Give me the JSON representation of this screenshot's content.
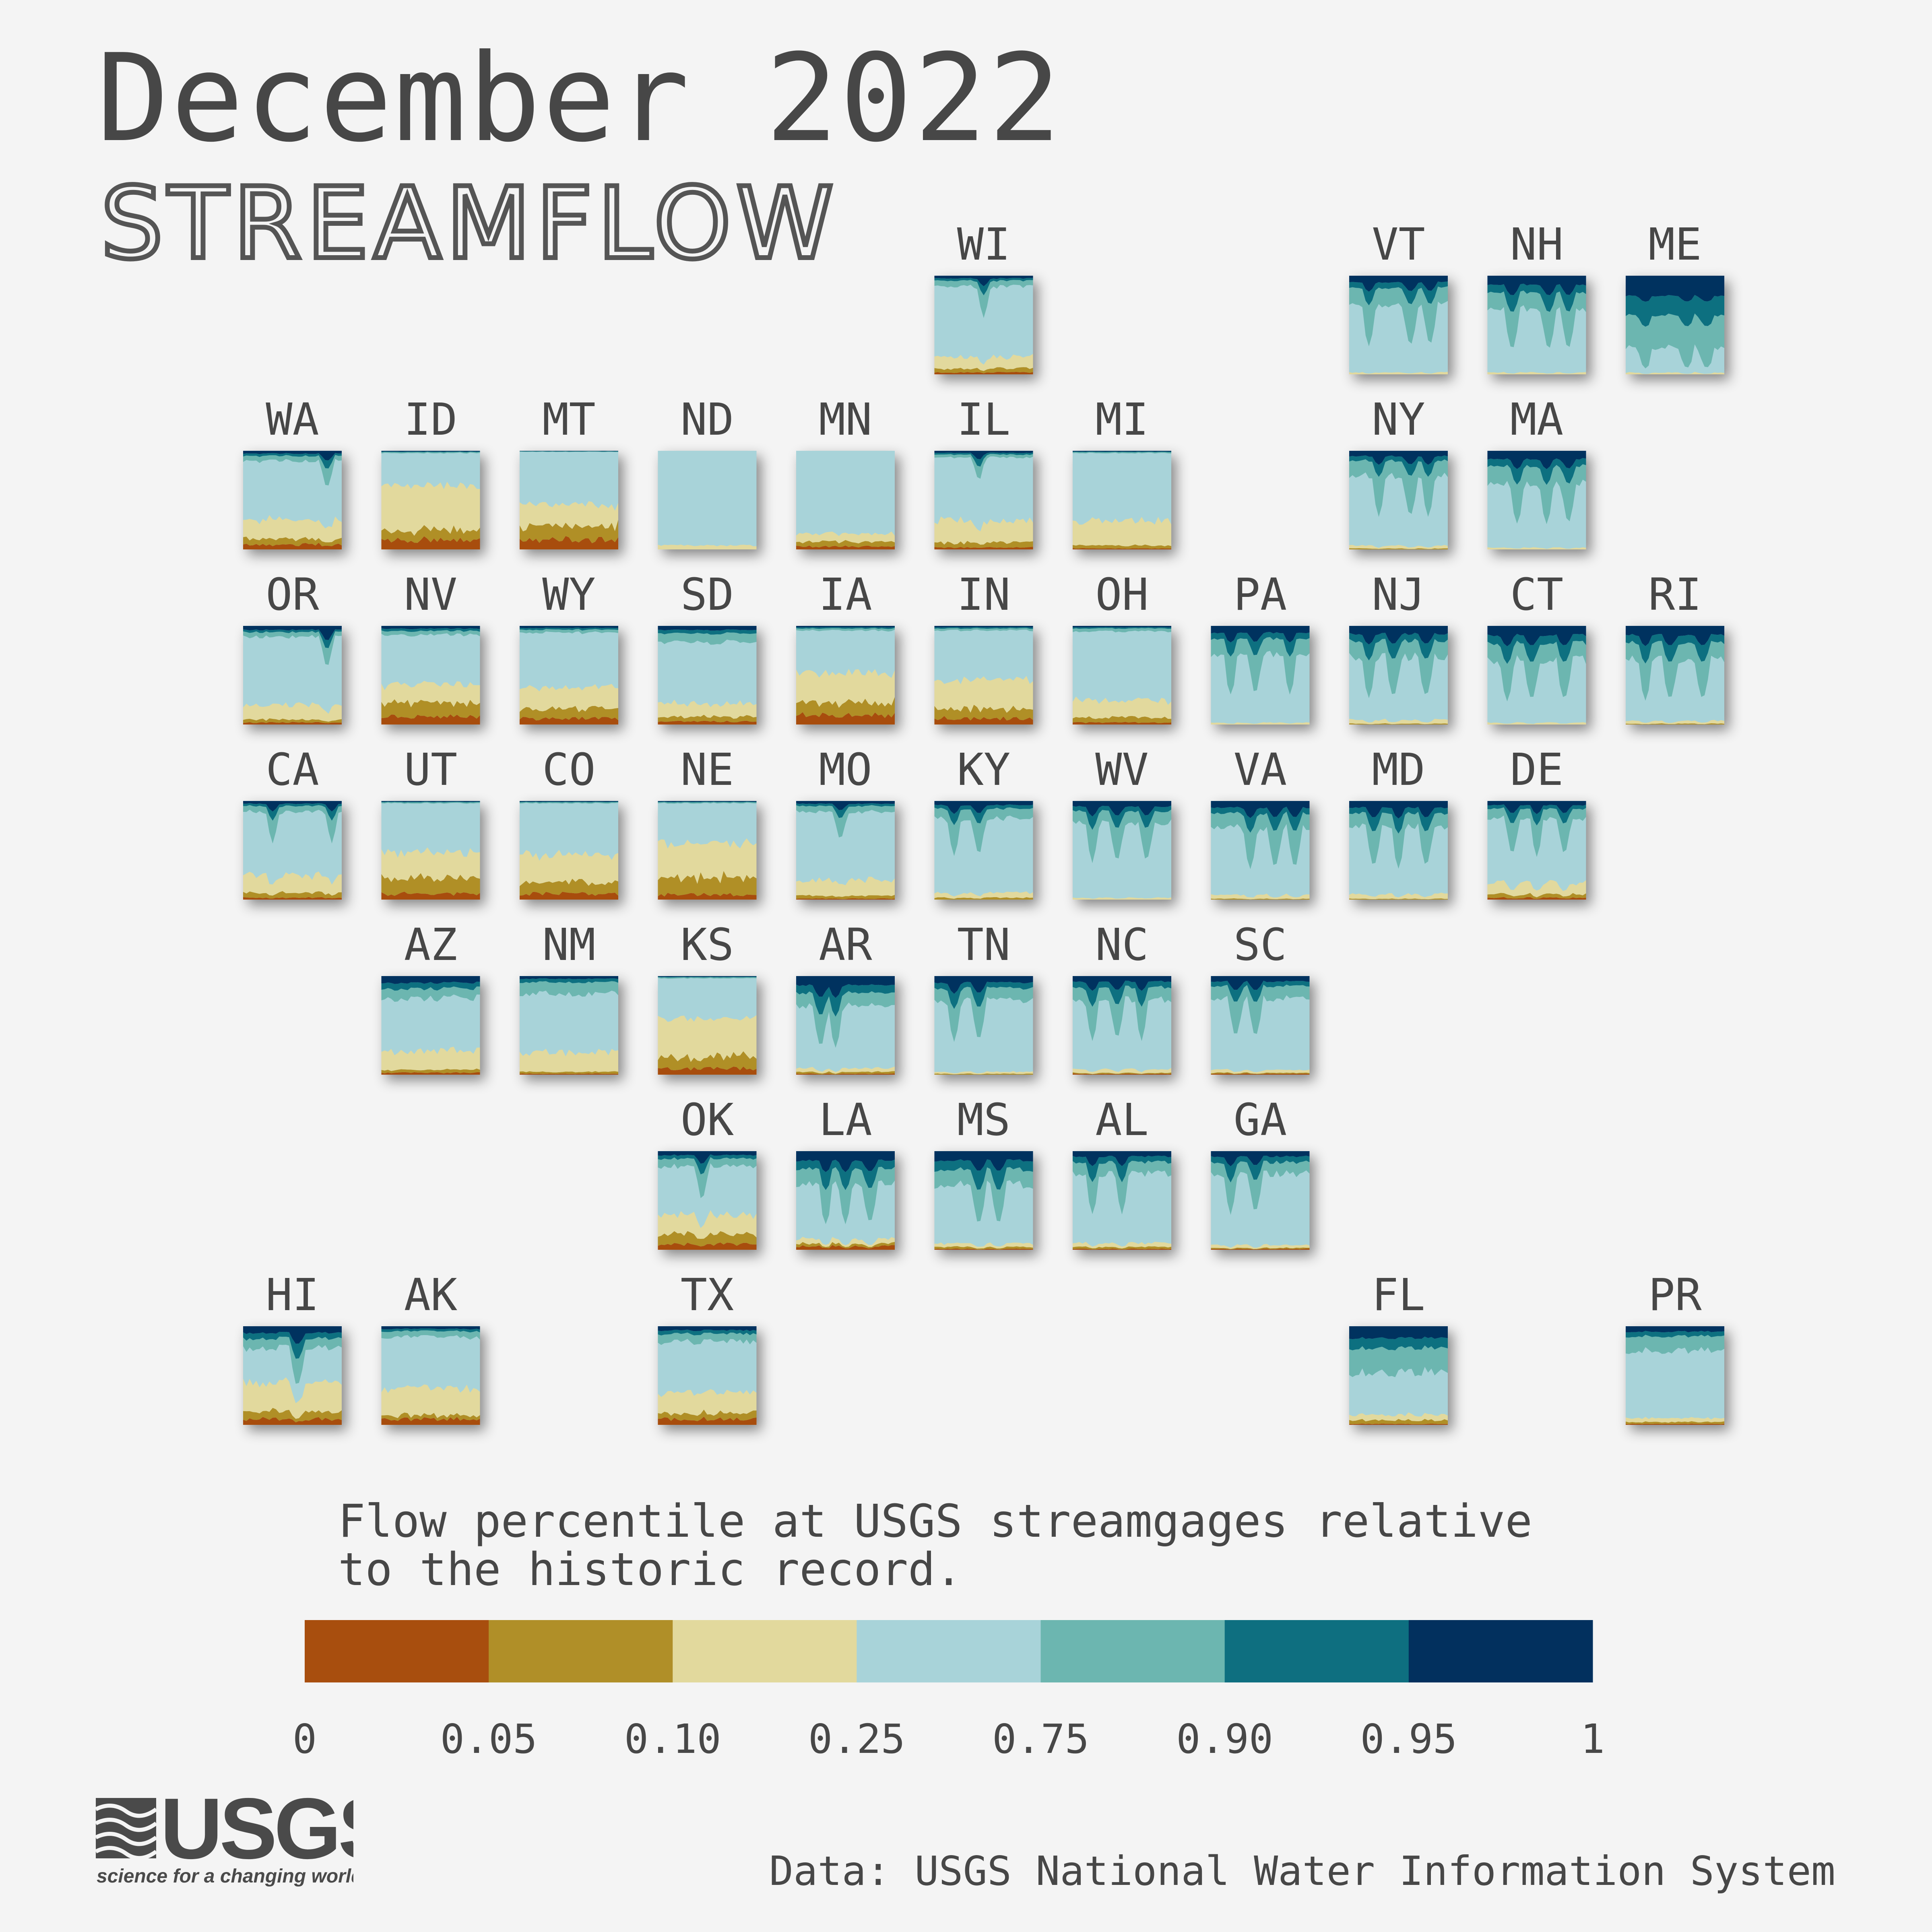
{
  "header": {
    "title": "December 2022",
    "subtitle": "STREAMFLOW"
  },
  "legend": {
    "caption": "Flow percentile at USGS streamgages relative\nto the historic record.",
    "breaks": [
      "0",
      "0.05",
      "0.10",
      "0.25",
      "0.75",
      "0.90",
      "0.95",
      "1"
    ],
    "colors": [
      "#a84e0e",
      "#b08f28",
      "#e2d99d",
      "#a8d3d9",
      "#6cb6b0",
      "#0e6f80",
      "#02305e"
    ]
  },
  "source": "Data: USGS National Water Information System",
  "logo": {
    "wordmark": "USGS",
    "tagline": "science for a changing world"
  },
  "chart_data": {
    "type": "area",
    "description_of_values": "Share of streamgages in each flow-percentile class, stacked from driest (bottom) to wettest (top), across the days of the month.",
    "classes": [
      "0-0.05",
      "0.05-0.10",
      "0.10-0.25",
      "0.25-0.75",
      "0.75-0.90",
      "0.90-0.95",
      "0.95-1"
    ],
    "x_range": [
      1,
      31
    ],
    "ylim": [
      0,
      1
    ],
    "tiles": [
      {
        "state": "WI",
        "row": 0,
        "col": 5,
        "shares": [
          0.02,
          0.04,
          0.12,
          0.72,
          0.06,
          0.02,
          0.02
        ],
        "wet_spikes": [
          0.5
        ]
      },
      {
        "state": "VT",
        "row": 0,
        "col": 8,
        "shares": [
          0.0,
          0.0,
          0.02,
          0.7,
          0.18,
          0.05,
          0.05
        ],
        "wet_spikes": [
          0.2,
          0.62,
          0.82
        ]
      },
      {
        "state": "NH",
        "row": 0,
        "col": 9,
        "shares": [
          0.0,
          0.0,
          0.02,
          0.66,
          0.18,
          0.07,
          0.07
        ],
        "wet_spikes": [
          0.25,
          0.62,
          0.82
        ]
      },
      {
        "state": "ME",
        "row": 0,
        "col": 10,
        "shares": [
          0.0,
          0.0,
          0.02,
          0.28,
          0.36,
          0.18,
          0.16
        ],
        "wet_spikes": [
          0.2,
          0.62,
          0.82
        ]
      },
      {
        "state": "WA",
        "row": 1,
        "col": 0,
        "shares": [
          0.05,
          0.06,
          0.2,
          0.6,
          0.05,
          0.02,
          0.02
        ],
        "wet_spikes": [
          0.85
        ]
      },
      {
        "state": "ID",
        "row": 1,
        "col": 1,
        "shares": [
          0.1,
          0.1,
          0.45,
          0.33,
          0.01,
          0.005,
          0.005
        ],
        "wet_spikes": []
      },
      {
        "state": "MT",
        "row": 1,
        "col": 2,
        "shares": [
          0.1,
          0.14,
          0.22,
          0.53,
          0.005,
          0.0025,
          0.0025
        ],
        "wet_spikes": []
      },
      {
        "state": "ND",
        "row": 1,
        "col": 3,
        "shares": [
          0.0,
          0.0,
          0.04,
          0.96,
          0.0,
          0.0,
          0.0
        ],
        "wet_spikes": []
      },
      {
        "state": "MN",
        "row": 1,
        "col": 4,
        "shares": [
          0.03,
          0.05,
          0.08,
          0.84,
          0.0,
          0.0,
          0.0
        ],
        "wet_spikes": []
      },
      {
        "state": "IL",
        "row": 1,
        "col": 5,
        "shares": [
          0.02,
          0.05,
          0.22,
          0.65,
          0.03,
          0.015,
          0.015
        ],
        "wet_spikes": [
          0.45
        ]
      },
      {
        "state": "MI",
        "row": 1,
        "col": 6,
        "shares": [
          0.01,
          0.03,
          0.25,
          0.69,
          0.01,
          0.005,
          0.005
        ],
        "wet_spikes": []
      },
      {
        "state": "NY",
        "row": 1,
        "col": 8,
        "shares": [
          0.0,
          0.01,
          0.03,
          0.72,
          0.16,
          0.04,
          0.04
        ],
        "wet_spikes": [
          0.3,
          0.62,
          0.8
        ]
      },
      {
        "state": "MA",
        "row": 1,
        "col": 9,
        "shares": [
          0.0,
          0.0,
          0.02,
          0.68,
          0.18,
          0.06,
          0.06
        ],
        "wet_spikes": [
          0.3,
          0.6,
          0.82
        ]
      },
      {
        "state": "OR",
        "row": 2,
        "col": 0,
        "shares": [
          0.02,
          0.03,
          0.15,
          0.7,
          0.05,
          0.02,
          0.03
        ],
        "wet_spikes": [
          0.85
        ]
      },
      {
        "state": "NV",
        "row": 2,
        "col": 1,
        "shares": [
          0.08,
          0.14,
          0.2,
          0.5,
          0.04,
          0.02,
          0.02
        ],
        "wet_spikes": []
      },
      {
        "state": "WY",
        "row": 2,
        "col": 2,
        "shares": [
          0.06,
          0.1,
          0.22,
          0.56,
          0.03,
          0.015,
          0.015
        ],
        "wet_spikes": []
      },
      {
        "state": "SD",
        "row": 2,
        "col": 3,
        "shares": [
          0.03,
          0.05,
          0.14,
          0.63,
          0.09,
          0.03,
          0.03
        ],
        "wet_spikes": []
      },
      {
        "state": "IA",
        "row": 2,
        "col": 4,
        "shares": [
          0.1,
          0.13,
          0.3,
          0.43,
          0.02,
          0.01,
          0.01
        ],
        "wet_spikes": []
      },
      {
        "state": "IN",
        "row": 2,
        "col": 5,
        "shares": [
          0.06,
          0.1,
          0.3,
          0.5,
          0.02,
          0.01,
          0.01
        ],
        "wet_spikes": []
      },
      {
        "state": "OH",
        "row": 2,
        "col": 6,
        "shares": [
          0.02,
          0.05,
          0.18,
          0.7,
          0.03,
          0.01,
          0.01
        ],
        "wet_spikes": []
      },
      {
        "state": "PA",
        "row": 2,
        "col": 7,
        "shares": [
          0.0,
          0.0,
          0.02,
          0.72,
          0.16,
          0.05,
          0.05
        ],
        "wet_spikes": [
          0.2,
          0.45,
          0.8
        ]
      },
      {
        "state": "NJ",
        "row": 2,
        "col": 8,
        "shares": [
          0.0,
          0.01,
          0.04,
          0.66,
          0.17,
          0.06,
          0.06
        ],
        "wet_spikes": [
          0.2,
          0.45,
          0.78
        ]
      },
      {
        "state": "CT",
        "row": 2,
        "col": 9,
        "shares": [
          0.0,
          0.0,
          0.02,
          0.66,
          0.18,
          0.07,
          0.07
        ],
        "wet_spikes": [
          0.2,
          0.45,
          0.78
        ]
      },
      {
        "state": "RI",
        "row": 2,
        "col": 10,
        "shares": [
          0.0,
          0.01,
          0.03,
          0.64,
          0.18,
          0.07,
          0.07
        ],
        "wet_spikes": [
          0.2,
          0.45,
          0.78
        ]
      },
      {
        "state": "CA",
        "row": 3,
        "col": 0,
        "shares": [
          0.02,
          0.05,
          0.18,
          0.65,
          0.06,
          0.02,
          0.02
        ],
        "wet_spikes": [
          0.3,
          0.9
        ]
      },
      {
        "state": "UT",
        "row": 3,
        "col": 1,
        "shares": [
          0.06,
          0.16,
          0.26,
          0.5,
          0.01,
          0.005,
          0.005
        ],
        "wet_spikes": []
      },
      {
        "state": "CO",
        "row": 3,
        "col": 2,
        "shares": [
          0.06,
          0.12,
          0.28,
          0.52,
          0.01,
          0.005,
          0.005
        ],
        "wet_spikes": []
      },
      {
        "state": "NE",
        "row": 3,
        "col": 3,
        "shares": [
          0.05,
          0.18,
          0.34,
          0.41,
          0.01,
          0.005,
          0.005
        ],
        "wet_spikes": []
      },
      {
        "state": "MO",
        "row": 3,
        "col": 4,
        "shares": [
          0.01,
          0.03,
          0.16,
          0.7,
          0.06,
          0.02,
          0.02
        ],
        "wet_spikes": [
          0.45
        ]
      },
      {
        "state": "KY",
        "row": 3,
        "col": 5,
        "shares": [
          0.0,
          0.02,
          0.05,
          0.77,
          0.1,
          0.03,
          0.03
        ],
        "wet_spikes": [
          0.2,
          0.45
        ]
      },
      {
        "state": "WV",
        "row": 3,
        "col": 6,
        "shares": [
          0.0,
          0.0,
          0.02,
          0.78,
          0.12,
          0.04,
          0.04
        ],
        "wet_spikes": [
          0.2,
          0.45,
          0.75
        ]
      },
      {
        "state": "VA",
        "row": 3,
        "col": 7,
        "shares": [
          0.0,
          0.01,
          0.04,
          0.7,
          0.15,
          0.05,
          0.05
        ],
        "wet_spikes": [
          0.4,
          0.65,
          0.85
        ]
      },
      {
        "state": "MD",
        "row": 3,
        "col": 8,
        "shares": [
          0.0,
          0.01,
          0.05,
          0.7,
          0.14,
          0.05,
          0.05
        ],
        "wet_spikes": [
          0.25,
          0.5,
          0.78
        ]
      },
      {
        "state": "DE",
        "row": 3,
        "col": 9,
        "shares": [
          0.02,
          0.04,
          0.12,
          0.66,
          0.1,
          0.03,
          0.03
        ],
        "wet_spikes": [
          0.25,
          0.5,
          0.78
        ]
      },
      {
        "state": "AZ",
        "row": 4,
        "col": 1,
        "shares": [
          0.02,
          0.03,
          0.2,
          0.55,
          0.1,
          0.05,
          0.05
        ],
        "wet_spikes": []
      },
      {
        "state": "NM",
        "row": 4,
        "col": 2,
        "shares": [
          0.01,
          0.02,
          0.2,
          0.6,
          0.12,
          0.03,
          0.02
        ],
        "wet_spikes": []
      },
      {
        "state": "KS",
        "row": 4,
        "col": 3,
        "shares": [
          0.06,
          0.12,
          0.4,
          0.4,
          0.01,
          0.005,
          0.005
        ],
        "wet_spikes": []
      },
      {
        "state": "AR",
        "row": 4,
        "col": 4,
        "shares": [
          0.01,
          0.02,
          0.04,
          0.65,
          0.14,
          0.07,
          0.07
        ],
        "wet_spikes": [
          0.25,
          0.4
        ]
      },
      {
        "state": "TN",
        "row": 4,
        "col": 5,
        "shares": [
          0.0,
          0.01,
          0.02,
          0.74,
          0.13,
          0.05,
          0.05
        ],
        "wet_spikes": [
          0.2,
          0.45
        ]
      },
      {
        "state": "NC",
        "row": 4,
        "col": 6,
        "shares": [
          0.01,
          0.01,
          0.04,
          0.72,
          0.13,
          0.05,
          0.04
        ],
        "wet_spikes": [
          0.2,
          0.45,
          0.7
        ]
      },
      {
        "state": "SC",
        "row": 4,
        "col": 7,
        "shares": [
          0.01,
          0.01,
          0.03,
          0.74,
          0.13,
          0.04,
          0.04
        ],
        "wet_spikes": [
          0.25,
          0.45
        ]
      },
      {
        "state": "OK",
        "row": 5,
        "col": 3,
        "shares": [
          0.06,
          0.1,
          0.2,
          0.5,
          0.08,
          0.03,
          0.03
        ],
        "wet_spikes": [
          0.45
        ]
      },
      {
        "state": "LA",
        "row": 5,
        "col": 4,
        "shares": [
          0.04,
          0.03,
          0.05,
          0.58,
          0.16,
          0.07,
          0.07
        ],
        "wet_spikes": [
          0.3,
          0.5,
          0.75
        ]
      },
      {
        "state": "MS",
        "row": 5,
        "col": 5,
        "shares": [
          0.01,
          0.02,
          0.04,
          0.62,
          0.16,
          0.08,
          0.07
        ],
        "wet_spikes": [
          0.45,
          0.65
        ]
      },
      {
        "state": "AL",
        "row": 5,
        "col": 6,
        "shares": [
          0.01,
          0.02,
          0.04,
          0.72,
          0.12,
          0.05,
          0.04
        ],
        "wet_spikes": [
          0.2,
          0.5
        ]
      },
      {
        "state": "GA",
        "row": 5,
        "col": 7,
        "shares": [
          0.01,
          0.01,
          0.03,
          0.74,
          0.12,
          0.05,
          0.04
        ],
        "wet_spikes": [
          0.2,
          0.45
        ]
      },
      {
        "state": "HI",
        "row": 6,
        "col": 0,
        "shares": [
          0.06,
          0.08,
          0.3,
          0.36,
          0.1,
          0.05,
          0.05
        ],
        "wet_spikes": [
          0.55
        ]
      },
      {
        "state": "AK",
        "row": 6,
        "col": 1,
        "shares": [
          0.06,
          0.04,
          0.28,
          0.52,
          0.06,
          0.02,
          0.02
        ],
        "wet_spikes": []
      },
      {
        "state": "TX",
        "row": 6,
        "col": 3,
        "shares": [
          0.06,
          0.06,
          0.22,
          0.52,
          0.08,
          0.03,
          0.03
        ],
        "wet_spikes": []
      },
      {
        "state": "FL",
        "row": 6,
        "col": 8,
        "shares": [
          0.01,
          0.04,
          0.06,
          0.45,
          0.26,
          0.09,
          0.09
        ],
        "wet_spikes": []
      },
      {
        "state": "PR",
        "row": 6,
        "col": 10,
        "shares": [
          0.01,
          0.02,
          0.04,
          0.7,
          0.15,
          0.04,
          0.04
        ],
        "wet_spikes": []
      }
    ]
  }
}
